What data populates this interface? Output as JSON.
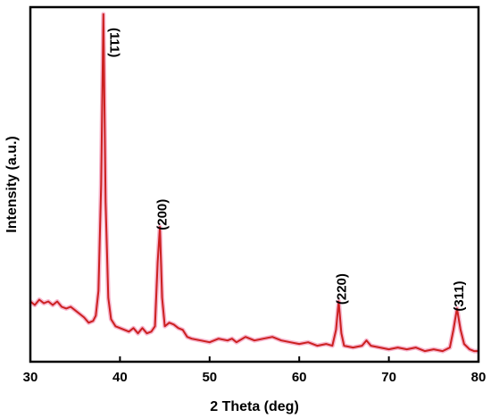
{
  "chart_data": {
    "type": "line",
    "title": "",
    "xlabel": "2 Theta (deg)",
    "ylabel": "Intensity (a.u.)",
    "xlim": [
      30,
      80
    ],
    "ylim": [
      0,
      100
    ],
    "xticks": [
      30,
      40,
      50,
      60,
      70,
      80
    ],
    "show_yticks": false,
    "grid": false,
    "line_color": "#cc2020",
    "glow_color": "#f7b8cf",
    "series": [
      {
        "name": "",
        "points": [
          [
            30,
            17
          ],
          [
            30.5,
            16
          ],
          [
            31,
            17.5
          ],
          [
            31.5,
            16.5
          ],
          [
            32,
            17
          ],
          [
            32.5,
            16
          ],
          [
            33,
            17
          ],
          [
            33.5,
            15.5
          ],
          [
            34,
            15
          ],
          [
            34.5,
            15.5
          ],
          [
            35,
            14.5
          ],
          [
            35.5,
            13.5
          ],
          [
            36,
            12.5
          ],
          [
            36.5,
            11
          ],
          [
            37,
            11.5
          ],
          [
            37.3,
            13
          ],
          [
            37.6,
            20
          ],
          [
            37.9,
            50
          ],
          [
            38.15,
            98
          ],
          [
            38.4,
            45
          ],
          [
            38.7,
            18
          ],
          [
            39,
            12
          ],
          [
            39.5,
            10
          ],
          [
            40,
            9.5
          ],
          [
            40.5,
            9
          ],
          [
            41,
            8.5
          ],
          [
            41.5,
            9.5
          ],
          [
            42,
            8
          ],
          [
            42.5,
            9.5
          ],
          [
            43,
            8
          ],
          [
            43.5,
            8.5
          ],
          [
            43.9,
            10
          ],
          [
            44.2,
            28
          ],
          [
            44.45,
            38
          ],
          [
            44.7,
            18
          ],
          [
            45,
            10
          ],
          [
            45.5,
            11
          ],
          [
            46,
            10.5
          ],
          [
            46.5,
            9.5
          ],
          [
            47,
            9
          ],
          [
            47.5,
            7
          ],
          [
            48,
            6.5
          ],
          [
            49,
            6
          ],
          [
            50,
            5.5
          ],
          [
            51,
            6.5
          ],
          [
            52,
            6
          ],
          [
            52.5,
            6.5
          ],
          [
            53,
            5.5
          ],
          [
            54,
            7
          ],
          [
            55,
            6
          ],
          [
            56,
            6.5
          ],
          [
            57,
            7
          ],
          [
            58,
            6
          ],
          [
            59,
            5.5
          ],
          [
            60,
            5
          ],
          [
            61,
            5.5
          ],
          [
            62,
            4.5
          ],
          [
            63,
            5
          ],
          [
            63.7,
            4.5
          ],
          [
            64.1,
            9
          ],
          [
            64.4,
            17
          ],
          [
            64.7,
            8
          ],
          [
            65,
            4.5
          ],
          [
            66,
            4
          ],
          [
            67,
            4.5
          ],
          [
            67.5,
            6
          ],
          [
            68,
            4.5
          ],
          [
            69,
            4
          ],
          [
            70,
            3.5
          ],
          [
            71,
            4
          ],
          [
            72,
            3.5
          ],
          [
            73,
            4
          ],
          [
            74,
            3
          ],
          [
            75,
            3.5
          ],
          [
            76,
            3
          ],
          [
            76.8,
            4
          ],
          [
            77.2,
            9
          ],
          [
            77.6,
            15
          ],
          [
            78,
            9
          ],
          [
            78.4,
            5
          ],
          [
            79,
            3.5
          ],
          [
            79.5,
            3
          ],
          [
            80,
            3
          ]
        ]
      }
    ],
    "annotations": [
      {
        "text": "(111)",
        "x": 39.3,
        "y": 90,
        "rotation": 90
      },
      {
        "text": "(200)",
        "x": 44.8,
        "y": 41.5,
        "rotation": -90
      },
      {
        "text": "(220)",
        "x": 64.8,
        "y": 20.5,
        "rotation": -90
      },
      {
        "text": "(311)",
        "x": 77.9,
        "y": 18.5,
        "rotation": -90
      }
    ]
  }
}
